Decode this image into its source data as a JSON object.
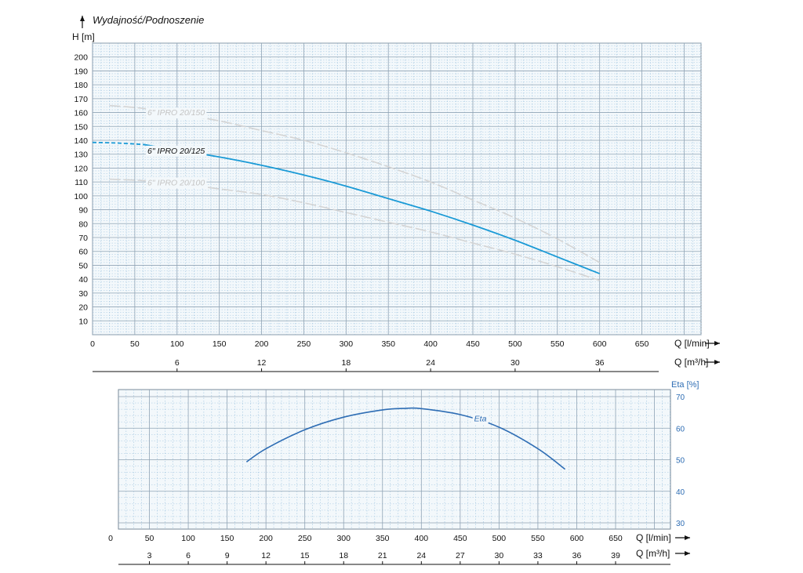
{
  "chart_data": [
    {
      "type": "line",
      "title": "Wydajność/Podnoszenie",
      "ylabel": "H [m]",
      "xlabel": "Q [l/min]",
      "xlabel2": "Q [m³/h]",
      "xlim": [
        0,
        720
      ],
      "ylim": [
        0,
        210
      ],
      "x_ticks": [
        "0",
        "50",
        "100",
        "150",
        "200",
        "250",
        "300",
        "350",
        "400",
        "450",
        "500",
        "550",
        "600",
        "650"
      ],
      "x2_ticks": [
        "6",
        "12",
        "18",
        "24",
        "30",
        "36"
      ],
      "y_ticks": [
        "10",
        "20",
        "30",
        "40",
        "50",
        "60",
        "70",
        "80",
        "90",
        "100",
        "110",
        "120",
        "130",
        "140",
        "150",
        "160",
        "170",
        "180",
        "190",
        "200"
      ],
      "grid": true,
      "series": [
        {
          "name": "6\" IPRO 20/125",
          "color": "#1a9ad6",
          "highlighted": true,
          "dashed_until": 60,
          "x": [
            0,
            30,
            60,
            100,
            150,
            200,
            250,
            300,
            350,
            400,
            450,
            500,
            550,
            600
          ],
          "y": [
            138.5,
            138,
            137,
            133,
            128,
            122,
            115,
            107,
            98,
            89,
            79,
            68,
            56,
            44
          ]
        },
        {
          "name": "6\" IPRO 20/150",
          "color": "#d4d4d4",
          "highlighted": false,
          "x": [
            20,
            60,
            100,
            150,
            200,
            250,
            300,
            350,
            400,
            450,
            500,
            550,
            600
          ],
          "y": [
            165,
            163,
            159,
            154,
            147,
            140,
            131,
            121,
            110,
            97,
            84,
            69,
            52
          ]
        },
        {
          "name": "6\" IPRO 20/100",
          "color": "#d4d4d4",
          "highlighted": false,
          "x": [
            20,
            60,
            100,
            150,
            200,
            250,
            300,
            350,
            400,
            450,
            500,
            550,
            600
          ],
          "y": [
            112,
            111,
            109,
            105,
            101,
            95,
            88,
            81,
            74,
            66,
            58,
            49,
            39
          ]
        }
      ]
    },
    {
      "type": "line",
      "ylabel": "Eta [%]",
      "xlabel": "Q [l/min]",
      "xlabel2": "Q [m³/h]",
      "xlim": [
        0,
        720
      ],
      "ylim": [
        28,
        71
      ],
      "x_ticks": [
        "0",
        "50",
        "100",
        "150",
        "200",
        "250",
        "300",
        "350",
        "400",
        "450",
        "500",
        "550",
        "600",
        "650"
      ],
      "x2_ticks": [
        "3",
        "6",
        "9",
        "12",
        "15",
        "18",
        "21",
        "24",
        "27",
        "30",
        "33",
        "36",
        "39"
      ],
      "y_ticks": [
        "30",
        "40",
        "50",
        "60",
        "70"
      ],
      "grid": true,
      "series": [
        {
          "name": "Eta",
          "color": "#2e6db4",
          "x": [
            175,
            200,
            250,
            300,
            350,
            380,
            400,
            450,
            500,
            550,
            585
          ],
          "y": [
            49.3,
            53.5,
            59.5,
            63.5,
            65.8,
            66.3,
            66.2,
            64.3,
            60.3,
            53.5,
            47
          ]
        }
      ]
    }
  ]
}
